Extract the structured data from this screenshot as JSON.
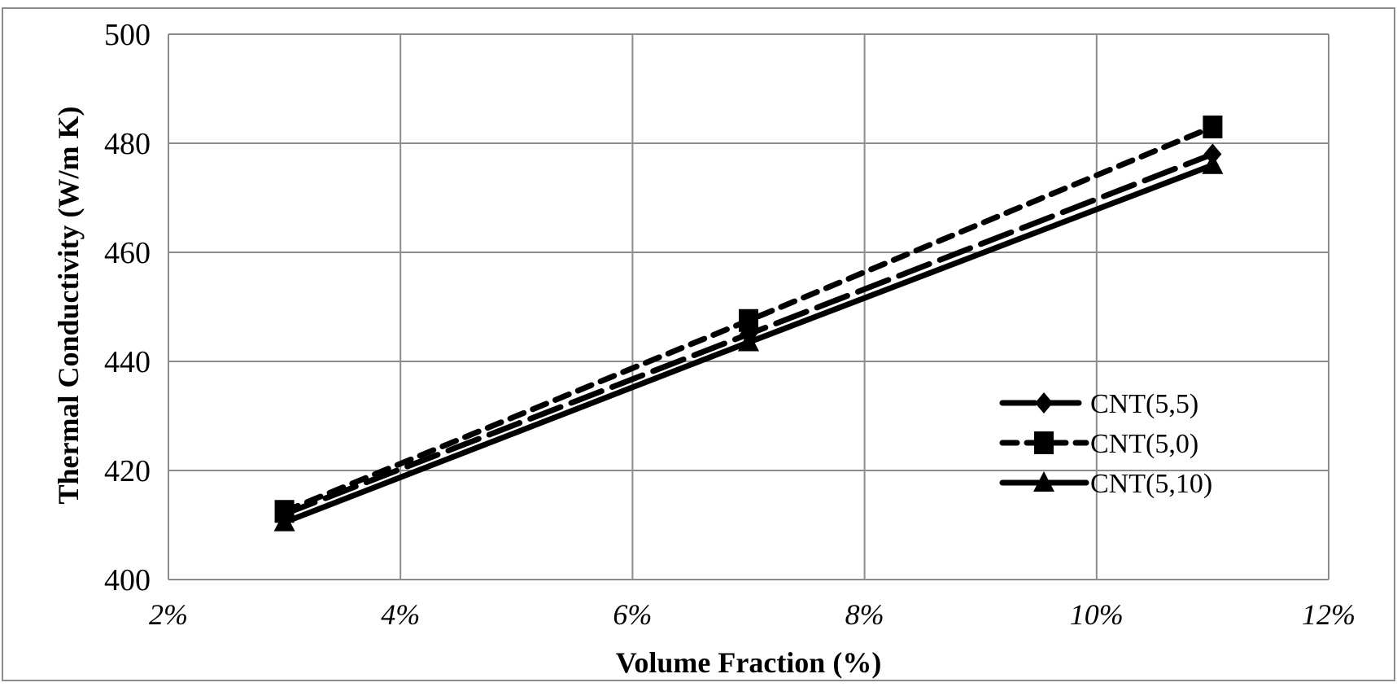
{
  "chart_data": {
    "type": "line",
    "title": "",
    "xlabel": "Volume Fraction (%)",
    "ylabel": "Thermal Conductivity (W/m K)",
    "x": [
      3,
      7,
      11
    ],
    "xlim": [
      2,
      12
    ],
    "ylim": [
      400,
      500
    ],
    "xticks": [
      "2%",
      "4%",
      "6%",
      "8%",
      "10%",
      "12%"
    ],
    "xtick_values": [
      2,
      4,
      6,
      8,
      10,
      12
    ],
    "yticks": [
      "400",
      "420",
      "440",
      "460",
      "480",
      "500"
    ],
    "ytick_values": [
      400,
      420,
      440,
      460,
      480,
      500
    ],
    "grid": true,
    "legend_position": "right-bottom",
    "series": [
      {
        "name": "CNT(5,5)",
        "values": [
          412,
          445,
          478
        ],
        "marker": "diamond",
        "dash": "long-dash"
      },
      {
        "name": "CNT(5,0)",
        "values": [
          412.5,
          447.5,
          483
        ],
        "marker": "square",
        "dash": "short-dash"
      },
      {
        "name": "CNT(5,10)",
        "values": [
          410.5,
          443.5,
          476
        ],
        "marker": "triangle",
        "dash": "solid"
      }
    ],
    "colors": {
      "line": "#000000",
      "grid": "#8c8c8c",
      "frame": "#8c8c8c"
    }
  }
}
